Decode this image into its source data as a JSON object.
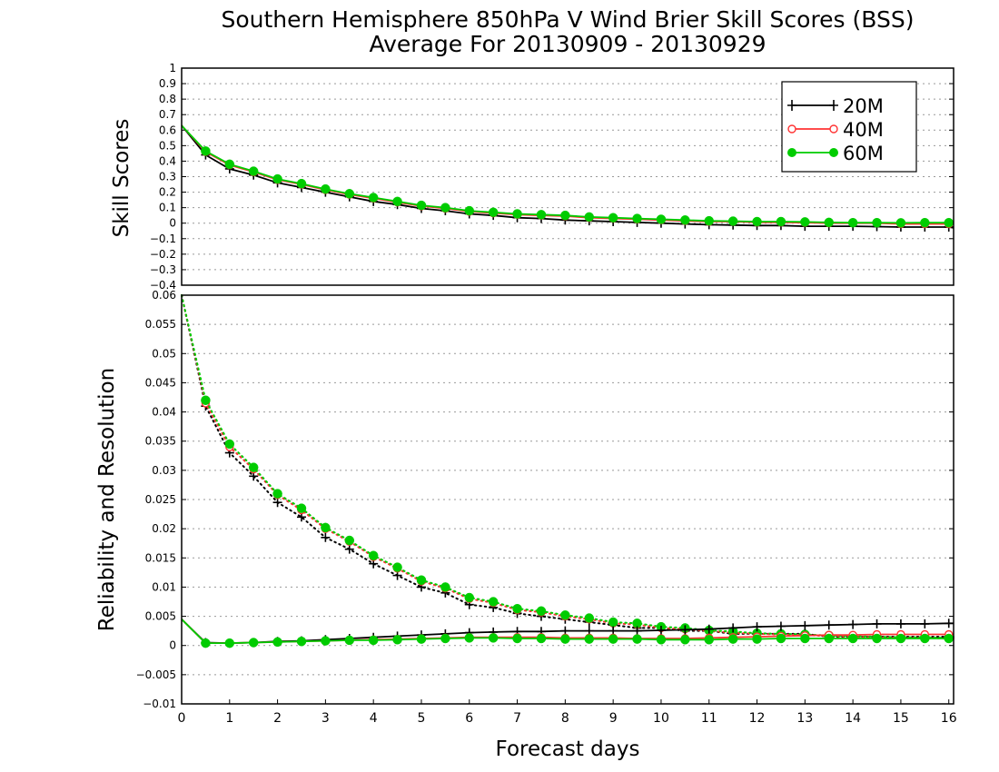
{
  "chart_data": [
    {
      "type": "line",
      "title": "Southern Hemisphere 850hPa V Wind Brier Skill Scores (BSS)",
      "subtitle": "Average For 20130909 - 20130929",
      "ylabel": "Skill Scores",
      "xlabel": "",
      "xlim": [
        0,
        16.1
      ],
      "ylim": [
        -0.4,
        1
      ],
      "yticks": [
        "1",
        "0.9",
        "0.8",
        "0.7",
        "0.6",
        "0.5",
        "0.4",
        "0.3",
        "0.2",
        "0.1",
        "0",
        "−0.1",
        "−0.2",
        "−0.3",
        "−0.4"
      ],
      "grid": true,
      "legend_position": "top-right",
      "x": [
        0,
        0.5,
        1,
        1.5,
        2,
        2.5,
        3,
        3.5,
        4,
        4.5,
        5,
        5.5,
        6,
        6.5,
        7,
        7.5,
        8,
        8.5,
        9,
        9.5,
        10,
        10.5,
        11,
        11.5,
        12,
        12.5,
        13,
        13.5,
        14,
        14.5,
        15,
        15.5,
        16,
        16.1
      ],
      "series": [
        {
          "name": "20M",
          "color": "#000000",
          "marker": "plus",
          "values": [
            0.63,
            0.44,
            0.35,
            0.31,
            0.26,
            0.23,
            0.2,
            0.17,
            0.14,
            0.12,
            0.095,
            0.08,
            0.06,
            0.05,
            0.035,
            0.03,
            0.02,
            0.015,
            0.01,
            0.005,
            0,
            -0.005,
            -0.01,
            -0.012,
            -0.015,
            -0.015,
            -0.02,
            -0.02,
            -0.02,
            -0.022,
            -0.025,
            -0.025,
            -0.025,
            -0.03
          ]
        },
        {
          "name": "40M",
          "color": "#ff3333",
          "marker": "open-circle",
          "values": [
            0.63,
            0.46,
            0.375,
            0.33,
            0.28,
            0.25,
            0.215,
            0.185,
            0.16,
            0.135,
            0.11,
            0.095,
            0.075,
            0.065,
            0.055,
            0.05,
            0.045,
            0.035,
            0.03,
            0.025,
            0.02,
            0.015,
            0.01,
            0.01,
            0.005,
            0.005,
            0.003,
            0,
            0,
            0,
            -0.005,
            -0.005,
            -0.005,
            -0.005
          ]
        },
        {
          "name": "60M",
          "color": "#00cc00",
          "marker": "filled-circle",
          "values": [
            0.63,
            0.465,
            0.38,
            0.335,
            0.285,
            0.255,
            0.22,
            0.19,
            0.165,
            0.14,
            0.115,
            0.1,
            0.08,
            0.07,
            0.06,
            0.055,
            0.05,
            0.04,
            0.035,
            0.03,
            0.025,
            0.02,
            0.015,
            0.013,
            0.01,
            0.01,
            0.008,
            0.005,
            0.003,
            0.003,
            0.002,
            0.003,
            0.003,
            0.003
          ]
        }
      ]
    },
    {
      "type": "line",
      "title": "",
      "ylabel": "Reliability and Resolution",
      "xlabel": "Forecast days",
      "xlim": [
        0,
        16.1
      ],
      "ylim": [
        -0.01,
        0.06
      ],
      "xticks": [
        "0",
        "1",
        "2",
        "3",
        "4",
        "5",
        "6",
        "7",
        "8",
        "9",
        "10",
        "11",
        "12",
        "13",
        "14",
        "15",
        "16"
      ],
      "yticks": [
        "0.06",
        "0.055",
        "0.05",
        "0.045",
        "0.04",
        "0.035",
        "0.03",
        "0.025",
        "0.02",
        "0.015",
        "0.01",
        "0.005",
        "0",
        "−0.005",
        "−0.01"
      ],
      "grid": true,
      "x": [
        0,
        0.5,
        1,
        1.5,
        2,
        2.5,
        3,
        3.5,
        4,
        4.5,
        5,
        5.5,
        6,
        6.5,
        7,
        7.5,
        8,
        8.5,
        9,
        9.5,
        10,
        10.5,
        11,
        11.5,
        12,
        12.5,
        13,
        13.5,
        14,
        14.5,
        15,
        15.5,
        16,
        16.1
      ],
      "series": [
        {
          "name": "20M",
          "kind": "resolution",
          "style": "dotted",
          "color": "#000000",
          "marker": "plus",
          "values": [
            0.06,
            0.041,
            0.033,
            0.029,
            0.0245,
            0.022,
            0.0185,
            0.0165,
            0.014,
            0.012,
            0.01,
            0.009,
            0.007,
            0.0065,
            0.0055,
            0.005,
            0.0045,
            0.004,
            0.0035,
            0.003,
            0.003,
            0.0025,
            0.0025,
            0.002,
            0.002,
            0.002,
            0.002,
            0.0015,
            0.0015,
            0.0015,
            0.0015,
            0.0015,
            0.0015,
            0.0015
          ]
        },
        {
          "name": "40M",
          "kind": "resolution",
          "style": "dotted",
          "color": "#ff3333",
          "marker": "open-circle",
          "values": [
            0.06,
            0.0415,
            0.034,
            0.0302,
            0.0258,
            0.0232,
            0.02,
            0.0178,
            0.0152,
            0.0132,
            0.011,
            0.0098,
            0.008,
            0.0073,
            0.0061,
            0.0057,
            0.005,
            0.0045,
            0.0038,
            0.0036,
            0.003,
            0.0028,
            0.0025,
            0.0022,
            0.002,
            0.0019,
            0.0018,
            0.0016,
            0.0015,
            0.0014,
            0.0013,
            0.0013,
            0.0012,
            0.0012
          ]
        },
        {
          "name": "60M",
          "kind": "resolution",
          "style": "dotted",
          "color": "#00cc00",
          "marker": "filled-circle",
          "values": [
            0.06,
            0.042,
            0.0345,
            0.0305,
            0.026,
            0.0235,
            0.0202,
            0.018,
            0.0154,
            0.0134,
            0.0112,
            0.01,
            0.0082,
            0.0075,
            0.0063,
            0.0059,
            0.0052,
            0.0047,
            0.004,
            0.0038,
            0.0032,
            0.003,
            0.0026,
            0.0024,
            0.0021,
            0.002,
            0.0019,
            0.0017,
            0.0016,
            0.0015,
            0.0014,
            0.0014,
            0.0013,
            0.0013
          ]
        },
        {
          "name": "20M",
          "kind": "reliability",
          "style": "solid",
          "color": "#000000",
          "marker": "plus",
          "values": [
            0.0045,
            0.0005,
            0.0004,
            0.0005,
            0.0007,
            0.0008,
            0.001,
            0.0012,
            0.0014,
            0.0016,
            0.0018,
            0.002,
            0.0022,
            0.0023,
            0.0024,
            0.0024,
            0.0025,
            0.0025,
            0.0025,
            0.0025,
            0.0026,
            0.0027,
            0.0028,
            0.003,
            0.0032,
            0.0033,
            0.0034,
            0.0035,
            0.0036,
            0.0037,
            0.0037,
            0.0037,
            0.0038,
            0.0038
          ]
        },
        {
          "name": "40M",
          "kind": "reliability",
          "style": "solid",
          "color": "#ff3333",
          "marker": "open-circle",
          "values": [
            0.0045,
            0.0004,
            0.0004,
            0.0005,
            0.0006,
            0.0007,
            0.0008,
            0.0009,
            0.001,
            0.0011,
            0.0012,
            0.0013,
            0.0014,
            0.0014,
            0.0014,
            0.0014,
            0.0013,
            0.0013,
            0.0013,
            0.0012,
            0.0012,
            0.0012,
            0.0013,
            0.0014,
            0.0015,
            0.0016,
            0.0017,
            0.0018,
            0.0018,
            0.0019,
            0.0019,
            0.0019,
            0.0019,
            0.0019
          ]
        },
        {
          "name": "60M",
          "kind": "reliability",
          "style": "solid",
          "color": "#00cc00",
          "marker": "filled-circle",
          "values": [
            0.0045,
            0.0004,
            0.0004,
            0.0005,
            0.0006,
            0.0007,
            0.0008,
            0.0009,
            0.0009,
            0.001,
            0.0011,
            0.0012,
            0.0013,
            0.0013,
            0.0012,
            0.0012,
            0.0011,
            0.0011,
            0.0011,
            0.0011,
            0.001,
            0.001,
            0.001,
            0.0011,
            0.0011,
            0.0012,
            0.0012,
            0.0012,
            0.0012,
            0.0012,
            0.0012,
            0.0012,
            0.0012,
            0.0012
          ]
        }
      ]
    }
  ],
  "legend": [
    {
      "label": "20M",
      "color": "#000000",
      "marker": "plus"
    },
    {
      "label": "40M",
      "color": "#ff3333",
      "marker": "open-circle"
    },
    {
      "label": "60M",
      "color": "#00cc00",
      "marker": "filled-circle"
    }
  ]
}
